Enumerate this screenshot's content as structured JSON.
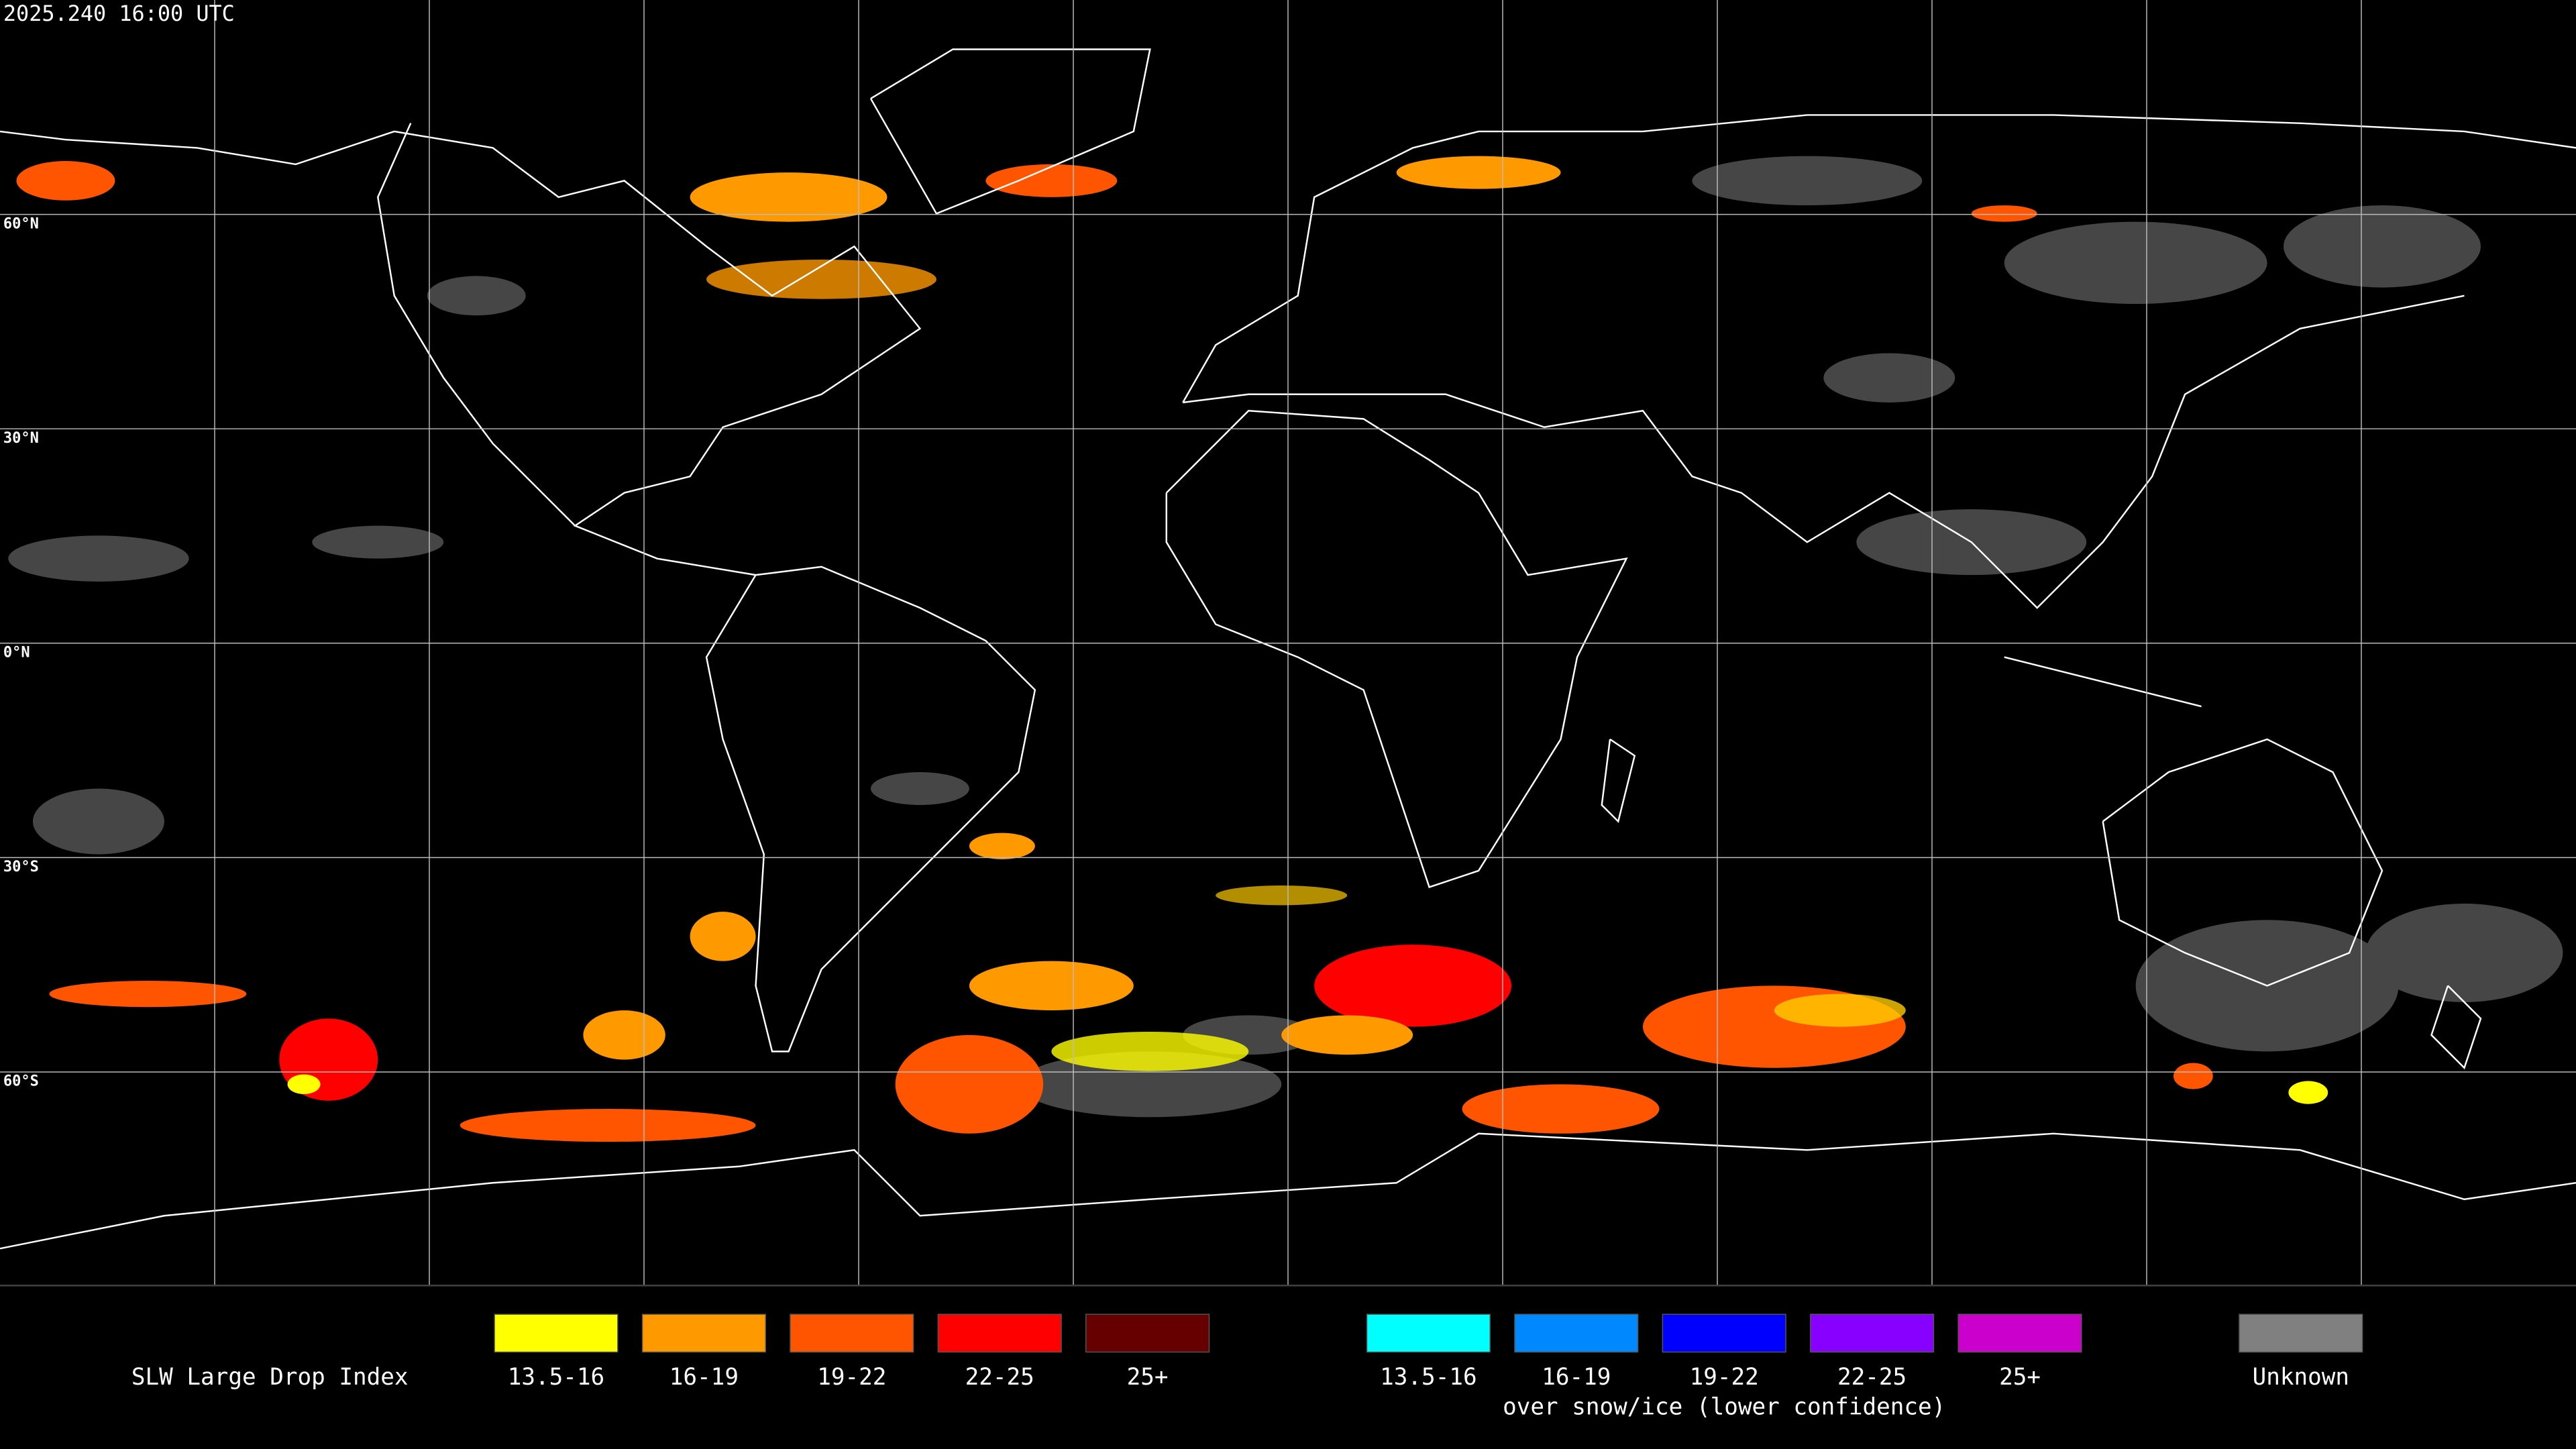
{
  "header": {
    "timestamp": "2025.240 16:00 UTC"
  },
  "map": {
    "latitude_labels": [
      "60°N",
      "30°N",
      "0°N",
      "30°S",
      "60°S"
    ]
  },
  "legend": {
    "title": "SLW Large Drop Index",
    "groups": [
      {
        "items": [
          {
            "label": "13.5-16",
            "color": "#ffff00"
          },
          {
            "label": "16-19",
            "color": "#ff9900"
          },
          {
            "label": "19-22",
            "color": "#ff5500"
          },
          {
            "label": "22-25",
            "color": "#ff0000"
          },
          {
            "label": "25+",
            "color": "#660000"
          }
        ]
      },
      {
        "items": [
          {
            "label": "13.5-16",
            "color": "#00ffff"
          },
          {
            "label": "16-19",
            "color": "#0088ff"
          },
          {
            "label": "19-22",
            "color": "#0000ff"
          },
          {
            "label": "22-25",
            "color": "#8800ff"
          },
          {
            "label": "25+",
            "color": "#cc00cc"
          }
        ],
        "caption": "over snow/ice (lower confidence)"
      },
      {
        "items": [
          {
            "label": "Unknown",
            "color": "#808080"
          }
        ]
      }
    ]
  }
}
